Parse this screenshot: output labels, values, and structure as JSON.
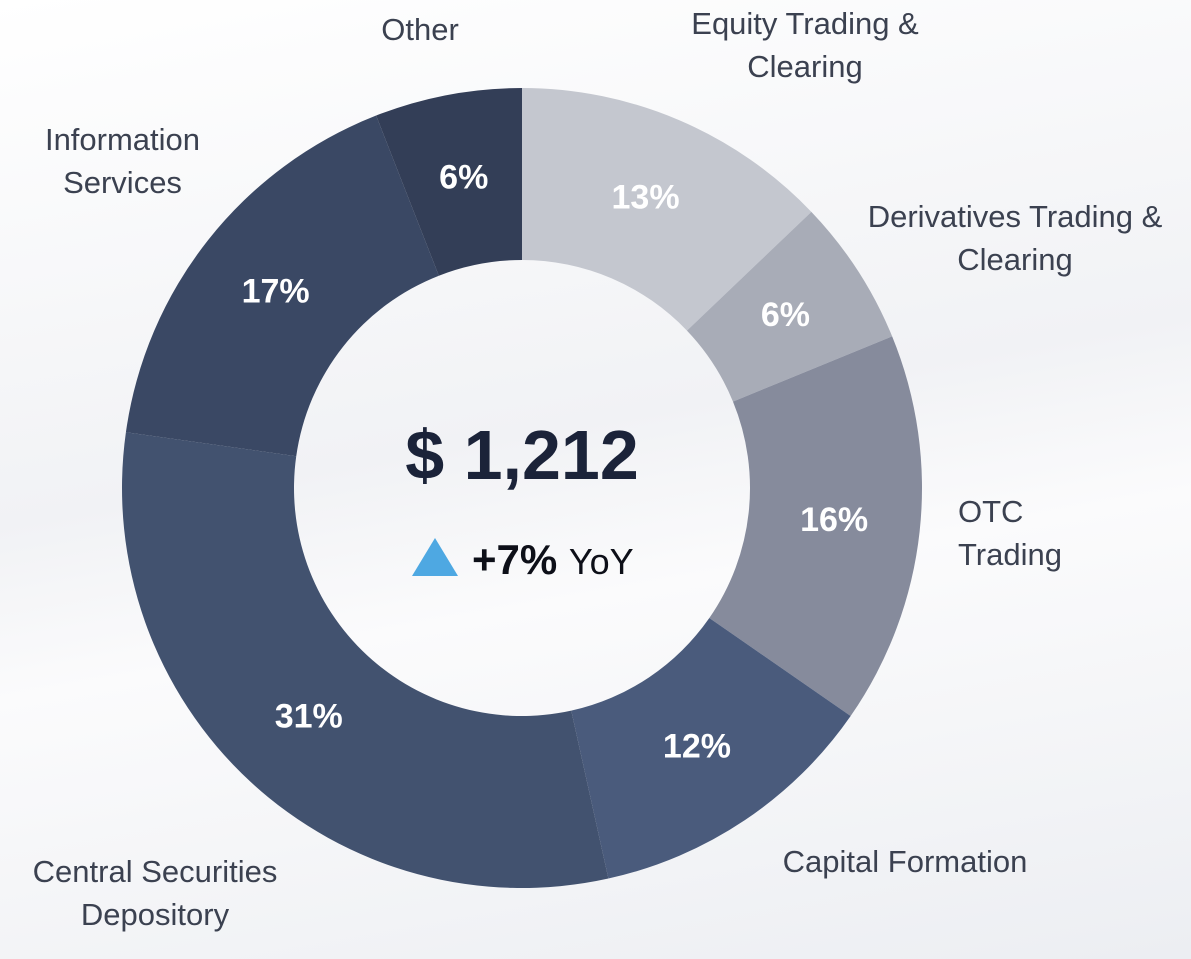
{
  "chart_data": {
    "type": "donut",
    "categories": [
      "Equity Trading & Clearing",
      "Derivatives Trading & Clearing",
      "OTC Trading",
      "Capital Formation",
      "Central Securities Depository",
      "Information Services",
      "Other"
    ],
    "values": [
      13,
      6,
      16,
      12,
      31,
      17,
      6
    ],
    "value_labels": [
      "13%",
      "6%",
      "16%",
      "12%",
      "31%",
      "17%",
      "6%"
    ],
    "colors": [
      "#c4c7cf",
      "#a8acb7",
      "#868b9c",
      "#4a5b7c",
      "#42526f",
      "#3a4864",
      "#333e57"
    ],
    "center_value": "$ 1,212",
    "change": "+7%",
    "change_unit": "YoY"
  }
}
